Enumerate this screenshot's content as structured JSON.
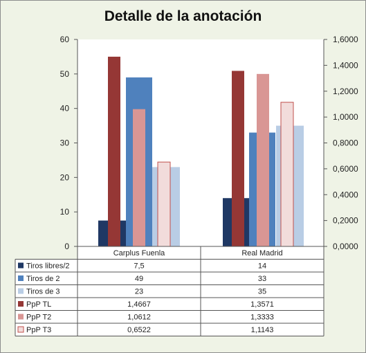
{
  "chart_data": {
    "type": "bar",
    "title": "Detalle de la anotación",
    "categories": [
      "Carplus Fuenla",
      "Real Madrid"
    ],
    "y_left": {
      "ylim": [
        0,
        60
      ],
      "ticks": [
        "0",
        "10",
        "20",
        "30",
        "40",
        "50",
        "60"
      ]
    },
    "y_right": {
      "ylim": [
        0,
        1.6
      ],
      "ticks": [
        "0,0000",
        "0,2000",
        "0,4000",
        "0,6000",
        "0,8000",
        "1,0000",
        "1,2000",
        "1,4000",
        "1,6000"
      ]
    },
    "grid": false,
    "legend": "data-table",
    "series": [
      {
        "name": "Tiros libres/2",
        "axis": "left",
        "color": "#1f3864",
        "values": [
          7.5,
          14
        ],
        "labels": [
          "7,5",
          "14"
        ]
      },
      {
        "name": "Tiros de 2",
        "axis": "left",
        "color": "#4f81bd",
        "values": [
          49,
          33
        ],
        "labels": [
          "49",
          "33"
        ]
      },
      {
        "name": "Tiros de 3",
        "axis": "left",
        "color": "#b9cde5",
        "values": [
          23,
          35
        ],
        "labels": [
          "23",
          "35"
        ]
      },
      {
        "name": "PpP TL",
        "axis": "right",
        "color": "#953735",
        "values": [
          1.4667,
          1.3571
        ],
        "labels": [
          "1,4667",
          "1,3571"
        ]
      },
      {
        "name": "PpP T2",
        "axis": "right",
        "color": "#d99694",
        "values": [
          1.0612,
          1.3333
        ],
        "labels": [
          "1,0612",
          "1,3333"
        ]
      },
      {
        "name": "PpP T3",
        "axis": "right",
        "color": "#f2dcdb",
        "values": [
          0.6522,
          1.1143
        ],
        "labels": [
          "0,6522",
          "1,1143"
        ]
      }
    ]
  }
}
